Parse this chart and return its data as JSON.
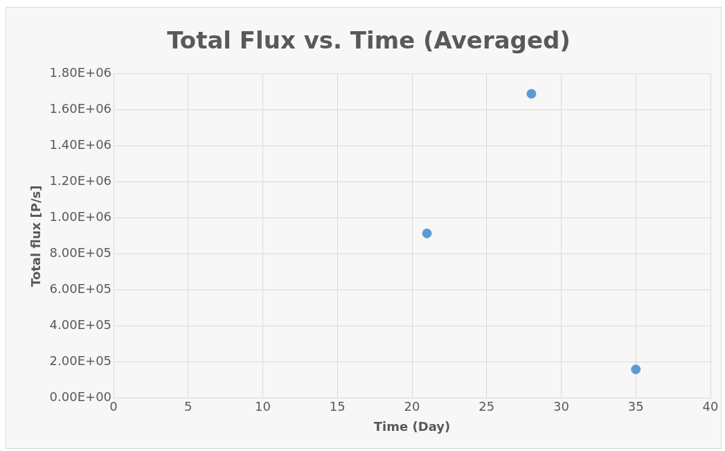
{
  "chart_data": {
    "type": "scatter",
    "title": "Total Flux vs. Time (Averaged)",
    "xlabel": "Time (Day)",
    "ylabel": "Total flux [P/s]",
    "x": [
      21,
      28,
      35
    ],
    "values": [
      915000,
      1690000,
      160000
    ],
    "color": "#5b9bd5",
    "xlim": [
      0,
      40
    ],
    "xticks": [
      0,
      5,
      10,
      15,
      20,
      25,
      30,
      35,
      40
    ],
    "ylim": [
      0,
      1800000
    ],
    "yticks": [
      {
        "value": 0,
        "label": "0.00E+00"
      },
      {
        "value": 200000,
        "label": "2.00E+05"
      },
      {
        "value": 400000,
        "label": "4.00E+05"
      },
      {
        "value": 600000,
        "label": "6.00E+05"
      },
      {
        "value": 800000,
        "label": "8.00E+05"
      },
      {
        "value": 1000000,
        "label": "1.00E+06"
      },
      {
        "value": 1200000,
        "label": "1.20E+06"
      },
      {
        "value": 1400000,
        "label": "1.40E+06"
      },
      {
        "value": 1600000,
        "label": "1.60E+06"
      },
      {
        "value": 1800000,
        "label": "1.80E+06"
      }
    ],
    "grid": true,
    "marker": "circle",
    "legend": false
  }
}
